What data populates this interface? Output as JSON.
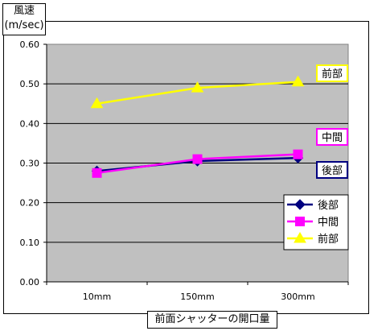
{
  "chart_data": {
    "type": "line",
    "ylabel_lines": [
      "風速",
      "(m/sec)"
    ],
    "xlabel": "前面シャッターの開口量",
    "categories": [
      "10mm",
      "150mm",
      "300mm"
    ],
    "ylim": [
      0,
      0.6
    ],
    "yticks": [
      "0.00",
      "0.10",
      "0.20",
      "0.30",
      "0.40",
      "0.50",
      "0.60"
    ],
    "grid": true,
    "legend_position": "lower-right",
    "series": [
      {
        "name": "後部",
        "values": [
          0.28,
          0.305,
          0.313
        ],
        "color": "#000080",
        "marker": "diamond"
      },
      {
        "name": "中間",
        "values": [
          0.275,
          0.31,
          0.322
        ],
        "color": "#ff00ff",
        "marker": "square"
      },
      {
        "name": "前部",
        "values": [
          0.45,
          0.49,
          0.505
        ],
        "color": "#ffff00",
        "marker": "triangle"
      }
    ],
    "callouts": [
      {
        "text": "前部",
        "color": "#ffff00"
      },
      {
        "text": "中間",
        "color": "#ff00ff"
      },
      {
        "text": "後部",
        "color": "#000080"
      }
    ]
  }
}
